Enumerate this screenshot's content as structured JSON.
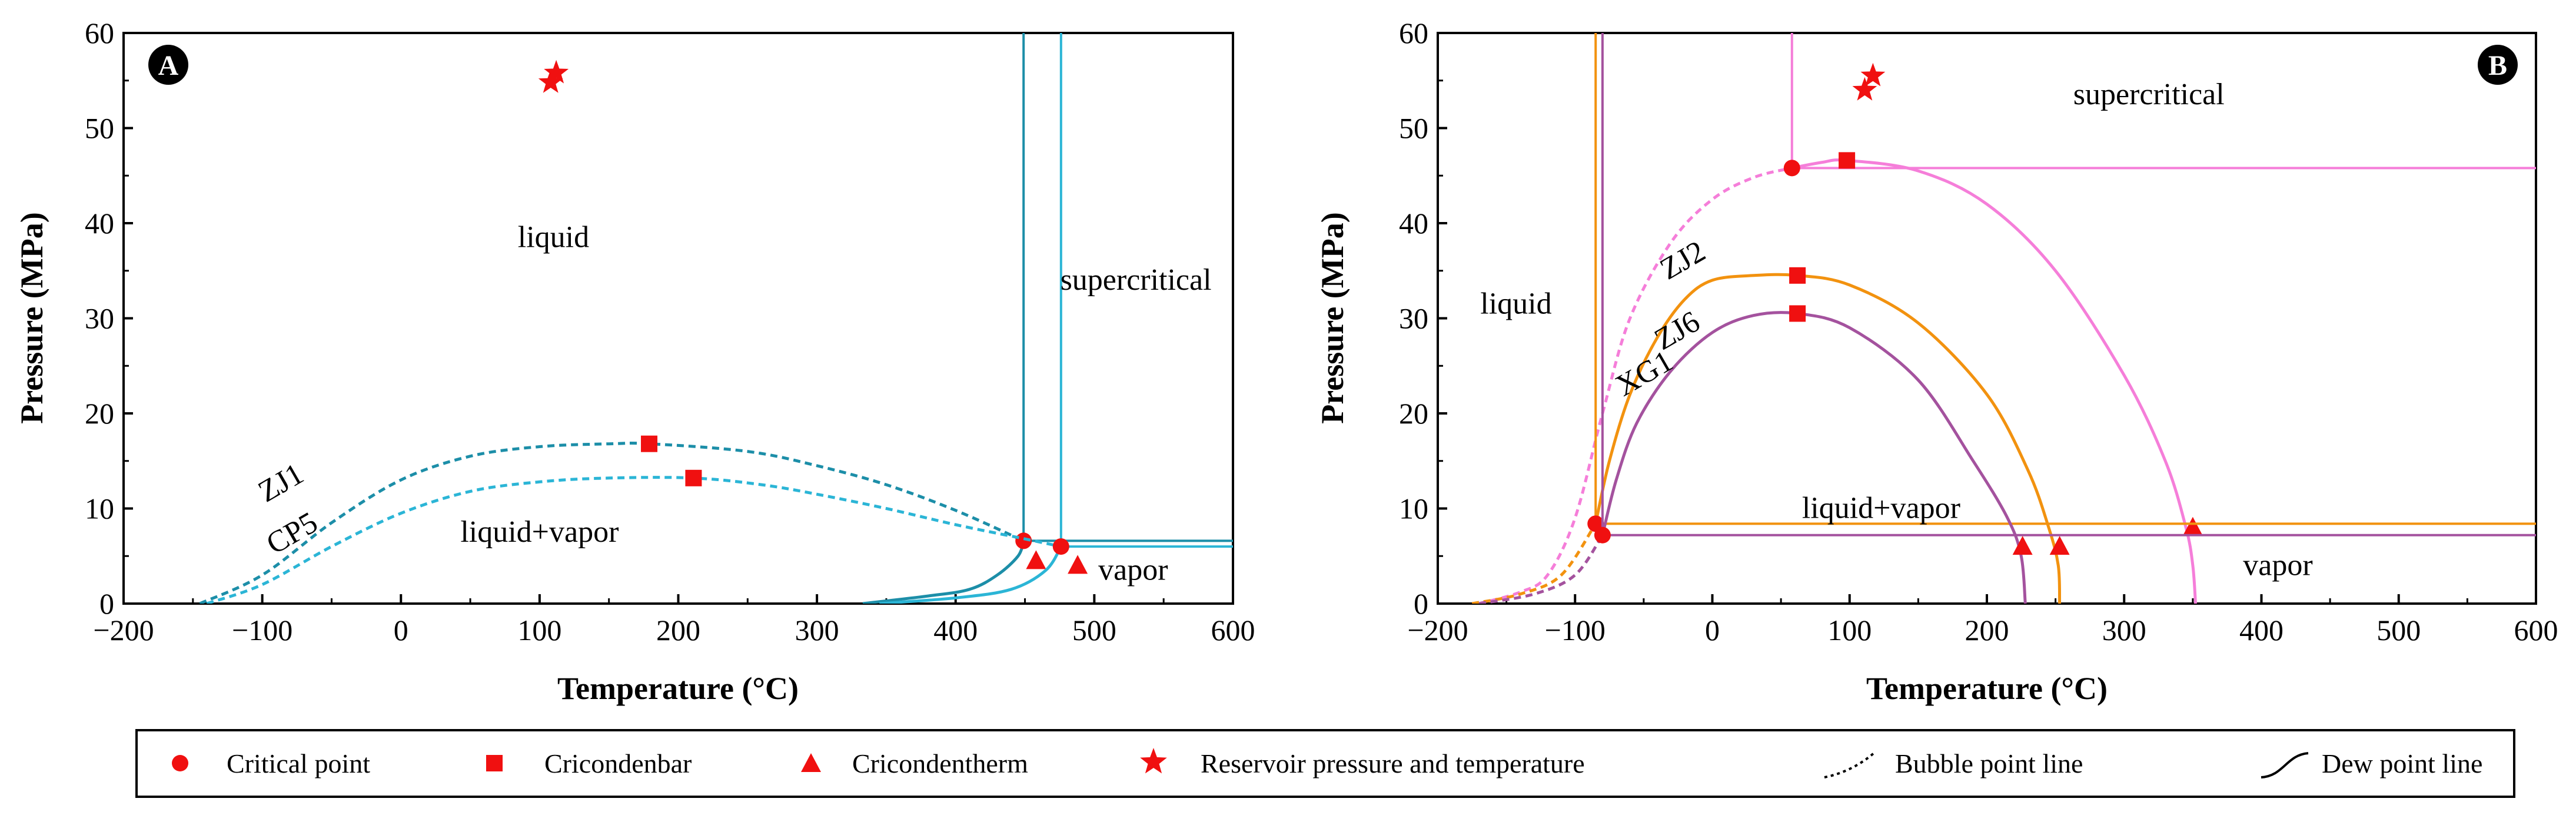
{
  "colors": {
    "teal": "#1C8EA8",
    "cyan": "#2BB5D6",
    "pink": "#F57ED9",
    "orange": "#F2920F",
    "purple": "#A4529E",
    "marker_red": "#F01010",
    "axis": "#000000"
  },
  "legend": {
    "critical": "Critical point",
    "cricondenbar": "Cricondenbar",
    "cricondentherm": "Cricondentherm",
    "reservoir": "Reservoir pressure and temperature",
    "bubble": "Bubble point line",
    "dew": "Dew point line"
  },
  "chart_data": [
    {
      "panel": "A",
      "type": "line",
      "xlabel": "Temperature (°C)",
      "ylabel": "Pressure (MPa)",
      "xlim": [
        -200,
        600
      ],
      "ylim": [
        0,
        60
      ],
      "xticks": [
        -200,
        -100,
        0,
        100,
        200,
        300,
        400,
        500,
        600
      ],
      "xtick_labels": [
        "−200",
        "−100",
        "0",
        "100",
        "200",
        "300",
        "400",
        "500",
        "600"
      ],
      "yticks": [
        0,
        10,
        20,
        30,
        40,
        50,
        60
      ],
      "ytick_labels": [
        "0",
        "10",
        "20",
        "30",
        "40",
        "50",
        "60"
      ],
      "regions": [
        {
          "text": "liquid",
          "x": 110,
          "y": 37.5
        },
        {
          "text": "supercritical",
          "x": 530,
          "y": 33
        },
        {
          "text": "liquid+vapor",
          "x": 100,
          "y": 6.5
        },
        {
          "text": "vapor",
          "x": 528,
          "y": 2.5
        }
      ],
      "series": [
        {
          "name": "ZJ1",
          "color_key": "teal",
          "label_pos": {
            "x": -83,
            "y": 11.8
          },
          "bubble": [
            [
              -145,
              0
            ],
            [
              -100,
              3
            ],
            [
              -50,
              8.5
            ],
            [
              0,
              13
            ],
            [
              50,
              15.5
            ],
            [
              100,
              16.5
            ],
            [
              150,
              16.8
            ],
            [
              180,
              16.8
            ],
            [
              250,
              16
            ],
            [
              300,
              14.5
            ],
            [
              350,
              12.5
            ],
            [
              400,
              9.8
            ],
            [
              449,
              6.6
            ]
          ],
          "dew": [
            [
              333,
              0
            ],
            [
              380,
              0.8
            ],
            [
              410,
              1.5
            ],
            [
              430,
              3
            ],
            [
              445,
              5
            ],
            [
              449,
              6.6
            ]
          ],
          "critical": [
            449,
            6.6
          ],
          "cricondenbar": [
            179,
            16.8
          ],
          "cricondentherm": [
            458,
            4.5
          ],
          "envelope": {
            "x": 449,
            "y": 6.6
          }
        },
        {
          "name": "CP5",
          "color_key": "cyan",
          "label_pos": {
            "x": -75,
            "y": 6.5
          },
          "bubble": [
            [
              -140,
              0
            ],
            [
              -100,
              2
            ],
            [
              -50,
              6
            ],
            [
              0,
              9.5
            ],
            [
              50,
              11.8
            ],
            [
              100,
              12.8
            ],
            [
              150,
              13.2
            ],
            [
              211,
              13.2
            ],
            [
              260,
              12.5
            ],
            [
              300,
              11.5
            ],
            [
              350,
              10
            ],
            [
              400,
              8.3
            ],
            [
              450,
              6.8
            ],
            [
              476,
              6
            ]
          ],
          "dew": [
            [
              345,
              0
            ],
            [
              400,
              0.6
            ],
            [
              440,
              1.5
            ],
            [
              465,
              3.5
            ],
            [
              476,
              6
            ]
          ],
          "critical": [
            476,
            6
          ],
          "cricondenbar": [
            211,
            13.2
          ],
          "cricondentherm": [
            488,
            4
          ],
          "envelope": {
            "x": 476,
            "y": 6
          }
        }
      ],
      "reservoir_points": [
        [
          108,
          54.8
        ],
        [
          112,
          55.8
        ]
      ]
    },
    {
      "panel": "B",
      "type": "line",
      "xlabel": "Temperature (°C)",
      "ylabel": "Pressure (MPa)",
      "xlim": [
        -200,
        600
      ],
      "ylim": [
        0,
        60
      ],
      "xticks": [
        -200,
        -100,
        0,
        100,
        200,
        300,
        400,
        500,
        600
      ],
      "xtick_labels": [
        "−200",
        "−100",
        "0",
        "100",
        "200",
        "300",
        "400",
        "500",
        "600"
      ],
      "yticks": [
        0,
        10,
        20,
        30,
        40,
        50,
        60
      ],
      "ytick_labels": [
        "0",
        "10",
        "20",
        "30",
        "40",
        "50",
        "60"
      ],
      "regions": [
        {
          "text": "liquid",
          "x": -143,
          "y": 30.5
        },
        {
          "text": "supercritical",
          "x": 318,
          "y": 52.5
        },
        {
          "text": "liquid+vapor",
          "x": 123,
          "y": 9
        },
        {
          "text": "vapor",
          "x": 412,
          "y": 3
        }
      ],
      "series": [
        {
          "name": "ZJ2",
          "color_key": "pink",
          "label_pos": {
            "x": -18,
            "y": 35.2
          },
          "bubble": [
            [
              -170,
              0
            ],
            [
              -140,
              1.2
            ],
            [
              -120,
              3
            ],
            [
              -100,
              9
            ],
            [
              -80,
              20
            ],
            [
              -60,
              30
            ],
            [
              -30,
              38
            ],
            [
              0,
              42.5
            ],
            [
              30,
              44.8
            ],
            [
              58,
              45.8
            ]
          ],
          "dew": [
            [
              58,
              45.8
            ],
            [
              80,
              46.4
            ],
            [
              98,
              46.6
            ],
            [
              150,
              45.5
            ],
            [
              200,
              42
            ],
            [
              250,
              35
            ],
            [
              300,
              24
            ],
            [
              330,
              15
            ],
            [
              345,
              8
            ],
            [
              350,
              4
            ],
            [
              352,
              0
            ]
          ],
          "critical": [
            58,
            45.8
          ],
          "cricondenbar": [
            98,
            46.6
          ],
          "cricondentherm": [
            350,
            8
          ],
          "envelope": {
            "x": 58,
            "y": 45.8
          }
        },
        {
          "name": "ZJ6",
          "color_key": "orange",
          "label_pos": {
            "x": -22,
            "y": 27.8
          },
          "bubble": [
            [
              -175,
              0
            ],
            [
              -140,
              1
            ],
            [
              -110,
              3
            ],
            [
              -85,
              8.4
            ]
          ],
          "dew": [
            [
              -85,
              8.4
            ],
            [
              -75,
              15
            ],
            [
              -60,
              22
            ],
            [
              -40,
              28
            ],
            [
              -20,
              32
            ],
            [
              0,
              34
            ],
            [
              30,
              34.5
            ],
            [
              62,
              34.5
            ],
            [
              100,
              33.5
            ],
            [
              150,
              29.5
            ],
            [
              200,
              22
            ],
            [
              230,
              14
            ],
            [
              245,
              8
            ],
            [
              252,
              4
            ],
            [
              253,
              0
            ]
          ],
          "critical": [
            -85,
            8.4
          ],
          "cricondenbar": [
            62,
            34.5
          ],
          "cricondentherm": [
            253,
            6
          ],
          "envelope": {
            "x": -85,
            "y": 8.4
          }
        },
        {
          "name": "XG1",
          "color_key": "purple",
          "label_pos": {
            "x": -46,
            "y": 23.3
          },
          "bubble": [
            [
              -170,
              0
            ],
            [
              -130,
              1
            ],
            [
              -100,
              3
            ],
            [
              -80,
              7.2
            ]
          ],
          "dew": [
            [
              -80,
              7.2
            ],
            [
              -70,
              13
            ],
            [
              -55,
              19
            ],
            [
              -30,
              24.5
            ],
            [
              0,
              28.5
            ],
            [
              30,
              30.3
            ],
            [
              62,
              30.5
            ],
            [
              100,
              29
            ],
            [
              150,
              23.5
            ],
            [
              190,
              15
            ],
            [
              215,
              9
            ],
            [
              225,
              5
            ],
            [
              228,
              0
            ]
          ],
          "critical": [
            -80,
            7.2
          ],
          "cricondenbar": [
            62,
            30.5
          ],
          "cricondentherm": [
            226,
            6
          ],
          "envelope": {
            "x": -80,
            "y": 7.2
          }
        }
      ],
      "reservoir_points": [
        [
          111,
          54
        ],
        [
          117,
          55.5
        ]
      ]
    }
  ]
}
